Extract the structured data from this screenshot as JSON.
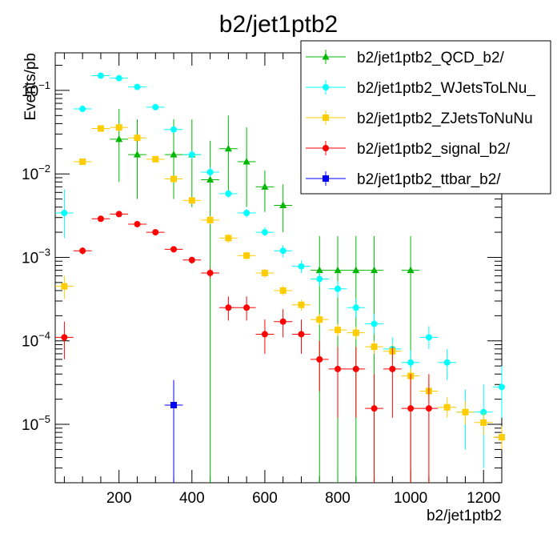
{
  "chart_data": {
    "type": "scatter",
    "title": "b2/jet1ptb2",
    "xlabel": "b2/jet1ptb2",
    "ylabel": "Events/pb",
    "xlim": [
      25,
      1250
    ],
    "ylim_log10": [
      -5.7,
      -0.55
    ],
    "yscale": "log",
    "bin_width": 50,
    "x_ticks": [
      200,
      400,
      600,
      800,
      1000,
      1200
    ],
    "x_tick_labels": [
      "200",
      "400",
      "600",
      "800",
      "1000",
      "1200"
    ],
    "y_ticks": [
      {
        "base": "10",
        "exp": "−5",
        "value": 1e-05
      },
      {
        "base": "10",
        "exp": "−4",
        "value": 0.0001
      },
      {
        "base": "10",
        "exp": "−3",
        "value": 0.001
      },
      {
        "base": "10",
        "exp": "−2",
        "value": 0.01
      },
      {
        "base": "10",
        "exp": "−1",
        "value": 0.1
      }
    ],
    "legend_position": "top-right",
    "series": [
      {
        "name": "b2/jet1ptb2_QCD_b2/",
        "color": "#00b800",
        "marker": "triangle",
        "points": [
          {
            "x": 200,
            "y": 0.026,
            "lo": 0.008,
            "hi": 0.06
          },
          {
            "x": 250,
            "y": 0.017,
            "lo": 0.005,
            "hi": 0.045
          },
          {
            "x": 350,
            "y": 0.017,
            "lo": 0.005,
            "hi": 0.045
          },
          {
            "x": 400,
            "y": 0.017,
            "lo": 0.004,
            "hi": 0.045
          },
          {
            "x": 450,
            "y": 0.0085,
            "lo": 1e-06,
            "hi": 0.025
          },
          {
            "x": 500,
            "y": 0.02,
            "lo": 0.006,
            "hi": 0.05
          },
          {
            "x": 550,
            "y": 0.014,
            "lo": 0.004,
            "hi": 0.036
          },
          {
            "x": 600,
            "y": 0.007,
            "lo": 0.0035,
            "hi": 0.011
          },
          {
            "x": 650,
            "y": 0.0042,
            "lo": 0.002,
            "hi": 0.0075
          },
          {
            "x": 750,
            "y": 0.0007,
            "lo": 1e-06,
            "hi": 0.0018
          },
          {
            "x": 800,
            "y": 0.0007,
            "lo": 1e-06,
            "hi": 0.0018
          },
          {
            "x": 850,
            "y": 0.0007,
            "lo": 1e-06,
            "hi": 0.0018
          },
          {
            "x": 900,
            "y": 0.0007,
            "lo": 1e-06,
            "hi": 0.0018
          },
          {
            "x": 1000,
            "y": 0.0007,
            "lo": 1e-06,
            "hi": 0.0018
          }
        ]
      },
      {
        "name": "b2/jet1ptb2_WJetsToLNu_",
        "color": "#00ffff",
        "marker": "circle",
        "points": [
          {
            "x": 50,
            "y": 0.0034,
            "lo": 0.0017,
            "hi": 0.0065
          },
          {
            "x": 100,
            "y": 0.06,
            "lo": 0.055,
            "hi": 0.066
          },
          {
            "x": 150,
            "y": 0.15,
            "lo": 0.145,
            "hi": 0.155
          },
          {
            "x": 200,
            "y": 0.14,
            "lo": 0.135,
            "hi": 0.145
          },
          {
            "x": 250,
            "y": 0.11,
            "lo": 0.105,
            "hi": 0.115
          },
          {
            "x": 300,
            "y": 0.063,
            "lo": 0.06,
            "hi": 0.066
          },
          {
            "x": 350,
            "y": 0.034,
            "lo": 0.031,
            "hi": 0.037
          },
          {
            "x": 400,
            "y": 0.017,
            "lo": 0.015,
            "hi": 0.019
          },
          {
            "x": 450,
            "y": 0.0105,
            "lo": 0.0092,
            "hi": 0.012
          },
          {
            "x": 500,
            "y": 0.0058,
            "lo": 0.0052,
            "hi": 0.0064
          },
          {
            "x": 550,
            "y": 0.0034,
            "lo": 0.003,
            "hi": 0.0038
          },
          {
            "x": 600,
            "y": 0.002,
            "lo": 0.0018,
            "hi": 0.0023
          },
          {
            "x": 650,
            "y": 0.0012,
            "lo": 0.001,
            "hi": 0.0014
          },
          {
            "x": 700,
            "y": 0.00078,
            "lo": 0.00065,
            "hi": 0.00092
          },
          {
            "x": 750,
            "y": 0.00055,
            "lo": 0.00045,
            "hi": 0.00066
          },
          {
            "x": 800,
            "y": 0.00042,
            "lo": 0.00033,
            "hi": 0.00052
          },
          {
            "x": 850,
            "y": 0.00025,
            "lo": 0.00019,
            "hi": 0.00032
          },
          {
            "x": 900,
            "y": 0.00016,
            "lo": 0.00012,
            "hi": 0.00021
          },
          {
            "x": 950,
            "y": 8e-05,
            "lo": 5.5e-05,
            "hi": 0.00011
          },
          {
            "x": 1000,
            "y": 5.5e-05,
            "lo": 3.6e-05,
            "hi": 7.8e-05
          },
          {
            "x": 1050,
            "y": 0.00011,
            "lo": 8e-05,
            "hi": 0.00015
          },
          {
            "x": 1100,
            "y": 5.5e-05,
            "lo": 3.4e-05,
            "hi": 8e-05
          },
          {
            "x": 1150,
            "y": 1.4e-05,
            "lo": 5e-06,
            "hi": 2.6e-05
          },
          {
            "x": 1200,
            "y": 1.4e-05,
            "lo": 3e-06,
            "hi": 3e-05
          },
          {
            "x": 1250,
            "y": 2.8e-05,
            "lo": 1.2e-05,
            "hi": 5e-05
          }
        ]
      },
      {
        "name": "b2/jet1ptb2_ZJetsToNuNu",
        "color": "#ffcc00",
        "marker": "square",
        "points": [
          {
            "x": 50,
            "y": 0.00045,
            "lo": 0.00032,
            "hi": 0.0006
          },
          {
            "x": 100,
            "y": 0.014,
            "lo": 0.013,
            "hi": 0.015
          },
          {
            "x": 150,
            "y": 0.035,
            "lo": 0.033,
            "hi": 0.037
          },
          {
            "x": 200,
            "y": 0.036,
            "lo": 0.034,
            "hi": 0.038
          },
          {
            "x": 250,
            "y": 0.027,
            "lo": 0.025,
            "hi": 0.029
          },
          {
            "x": 300,
            "y": 0.015,
            "lo": 0.014,
            "hi": 0.016
          },
          {
            "x": 350,
            "y": 0.0087,
            "lo": 0.0081,
            "hi": 0.0093
          },
          {
            "x": 400,
            "y": 0.0048,
            "lo": 0.0044,
            "hi": 0.0052
          },
          {
            "x": 450,
            "y": 0.0028,
            "lo": 0.0025,
            "hi": 0.0031
          },
          {
            "x": 500,
            "y": 0.0017,
            "lo": 0.0015,
            "hi": 0.0019
          },
          {
            "x": 550,
            "y": 0.00105,
            "lo": 0.00094,
            "hi": 0.00116
          },
          {
            "x": 600,
            "y": 0.00065,
            "lo": 0.00057,
            "hi": 0.00073
          },
          {
            "x": 650,
            "y": 0.0004,
            "lo": 0.00035,
            "hi": 0.00046
          },
          {
            "x": 700,
            "y": 0.00027,
            "lo": 0.00023,
            "hi": 0.00031
          },
          {
            "x": 750,
            "y": 0.00018,
            "lo": 0.000155,
            "hi": 0.00021
          },
          {
            "x": 800,
            "y": 0.000135,
            "lo": 0.000115,
            "hi": 0.000158
          },
          {
            "x": 850,
            "y": 0.000125,
            "lo": 0.000105,
            "hi": 0.000147
          },
          {
            "x": 900,
            "y": 8.5e-05,
            "lo": 7e-05,
            "hi": 0.0001
          },
          {
            "x": 950,
            "y": 7.5e-05,
            "lo": 6.2e-05,
            "hi": 9e-05
          },
          {
            "x": 1000,
            "y": 3.8e-05,
            "lo": 3e-05,
            "hi": 4.7e-05
          },
          {
            "x": 1050,
            "y": 2.5e-05,
            "lo": 1.9e-05,
            "hi": 3.2e-05
          },
          {
            "x": 1100,
            "y": 1.6e-05,
            "lo": 1.2e-05,
            "hi": 2.1e-05
          },
          {
            "x": 1150,
            "y": 1.4e-05,
            "lo": 1e-05,
            "hi": 1.9e-05
          },
          {
            "x": 1200,
            "y": 1.05e-05,
            "lo": 7.5e-06,
            "hi": 1.4e-05
          },
          {
            "x": 1250,
            "y": 7e-06,
            "lo": 5e-06,
            "hi": 9.5e-06
          }
        ]
      },
      {
        "name": "b2/jet1ptb2_signal_b2/",
        "color": "#ff0000",
        "marker": "circle",
        "points": [
          {
            "x": 50,
            "y": 0.00011,
            "lo": 6e-05,
            "hi": 0.00017
          },
          {
            "x": 100,
            "y": 0.0012,
            "lo": 0.00108,
            "hi": 0.00132
          },
          {
            "x": 150,
            "y": 0.0029,
            "lo": 0.00275,
            "hi": 0.00305
          },
          {
            "x": 200,
            "y": 0.0033,
            "lo": 0.00315,
            "hi": 0.00345
          },
          {
            "x": 250,
            "y": 0.0025,
            "lo": 0.00237,
            "hi": 0.00263
          },
          {
            "x": 300,
            "y": 0.002,
            "lo": 0.00189,
            "hi": 0.00211
          },
          {
            "x": 350,
            "y": 0.00125,
            "lo": 0.00115,
            "hi": 0.00135
          },
          {
            "x": 400,
            "y": 0.00093,
            "lo": 0.00084,
            "hi": 0.00102
          },
          {
            "x": 450,
            "y": 0.00065,
            "lo": 0.00056,
            "hi": 0.00074
          },
          {
            "x": 500,
            "y": 0.00025,
            "lo": 0.000175,
            "hi": 0.00034
          },
          {
            "x": 550,
            "y": 0.00025,
            "lo": 0.000175,
            "hi": 0.00034
          },
          {
            "x": 600,
            "y": 0.00012,
            "lo": 7e-05,
            "hi": 0.00018
          },
          {
            "x": 650,
            "y": 0.00017,
            "lo": 0.00011,
            "hi": 0.00024
          },
          {
            "x": 700,
            "y": 0.00012,
            "lo": 7e-05,
            "hi": 0.00018
          },
          {
            "x": 750,
            "y": 6e-05,
            "lo": 2.5e-05,
            "hi": 0.0001
          },
          {
            "x": 800,
            "y": 4.6e-05,
            "lo": 1.2e-05,
            "hi": 8.5e-05
          },
          {
            "x": 850,
            "y": 4.6e-05,
            "lo": 1.2e-05,
            "hi": 8.5e-05
          },
          {
            "x": 900,
            "y": 1.55e-05,
            "lo": 1e-06,
            "hi": 4e-05
          },
          {
            "x": 950,
            "y": 4.6e-05,
            "lo": 1.2e-05,
            "hi": 8.5e-05
          },
          {
            "x": 1000,
            "y": 1.55e-05,
            "lo": 1e-06,
            "hi": 4e-05
          },
          {
            "x": 1050,
            "y": 1.55e-05,
            "lo": 1e-06,
            "hi": 4e-05
          }
        ]
      },
      {
        "name": "b2/jet1ptb2_ttbar_b2/",
        "color": "#0000ff",
        "marker": "square",
        "points": [
          {
            "x": 350,
            "y": 1.7e-05,
            "lo": 1e-06,
            "hi": 3.4e-05
          }
        ]
      }
    ]
  }
}
